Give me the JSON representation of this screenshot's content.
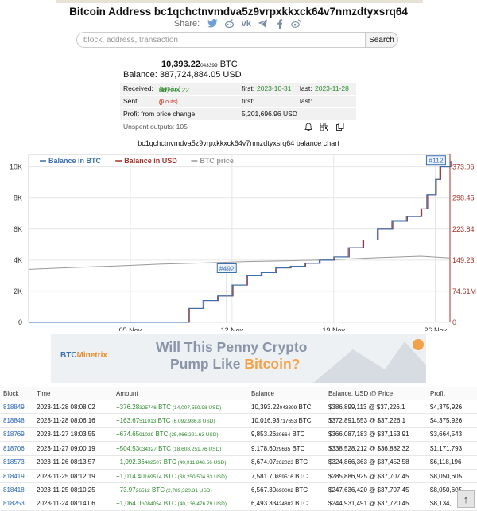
{
  "page": {
    "title": "Bitcoin Address bc1qchctnvmdva5z9vrpxkkxck64v7nmzdtyxsrq64",
    "share_label": "Share:",
    "share_icons": [
      "twitter-icon",
      "reddit-icon",
      "vk-icon",
      "telegram-icon",
      "facebook-icon",
      "weibo-icon"
    ]
  },
  "search": {
    "placeholder": "block, address, transaction",
    "button": "Search"
  },
  "summary": {
    "balance_btc": "10,393.22",
    "balance_btc_small": "043399",
    "btc_unit": "BTC",
    "balance_label": "Balance:",
    "balance_usd": "387,724,884.05 USD",
    "received_label": "Received:",
    "received_value": "10,393.22",
    "received_small": "04",
    "received_unit": "BTC",
    "received_ins": "(105 ins)",
    "first_label": "first:",
    "received_first": "2023-10-31",
    "last_label": "last:",
    "received_last": "2023-11-28",
    "sent_label": "Sent:",
    "sent_value": "0 BTC",
    "sent_outs": "(0 outs)",
    "profit_label": "Profit from price change:",
    "profit_value": "5,201,696.96 USD",
    "unspent_label": "Unspent outputs: 105"
  },
  "chart_data": {
    "type": "line",
    "title": "bc1qchctnvmdva5z9vrpxkkxck64v7nmzdtyxsrq64 balance chart",
    "legend": [
      {
        "name": "Balance in BTC",
        "color": "#3a6fb0"
      },
      {
        "name": "Balance in USD",
        "color": "#a0332c"
      },
      {
        "name": "BTC price",
        "color": "#999999"
      }
    ],
    "legend_position": "top-left",
    "x_ticks": [
      "05 Nov",
      "12 Nov",
      "19 Nov",
      "26 Nov"
    ],
    "y_left_ticks": [
      "0",
      "2K",
      "4K",
      "6K",
      "8K",
      "10K"
    ],
    "y_right_ticks": [
      "0",
      "74.61M",
      "149.23",
      "223.84",
      "298.45",
      "373.06"
    ],
    "ylim_left": [
      0,
      10800
    ],
    "x_range_days": [
      0,
      29
    ],
    "annotations": [
      "#492",
      "#112"
    ],
    "series": [
      {
        "name": "Balance in BTC",
        "x": [
          0,
          10,
          11,
          12,
          13,
          14,
          15,
          16,
          17,
          18,
          19,
          20,
          21,
          22,
          23,
          24,
          25,
          26,
          27,
          27.4,
          28,
          28.3,
          29
        ],
        "y": [
          0,
          0,
          900,
          1400,
          1700,
          2400,
          3000,
          3200,
          3500,
          3600,
          3800,
          4000,
          4200,
          4800,
          5300,
          6000,
          6500,
          6800,
          7300,
          8200,
          9200,
          10000,
          10393
        ]
      },
      {
        "name": "BTC price",
        "x": [
          0,
          3,
          6,
          9,
          12,
          15,
          18,
          21,
          24,
          27,
          29
        ],
        "y": [
          34200,
          34700,
          35100,
          35600,
          35900,
          36300,
          36500,
          36800,
          37300,
          37700,
          37226
        ]
      }
    ],
    "grid": true
  },
  "ad": {
    "brand": "BTC",
    "brand2": "Minetrix",
    "headline1": "Will This Penny Crypto",
    "headline2a": "Pump Like ",
    "headline2b": "Bitcoin?"
  },
  "table": {
    "headers": [
      "Block",
      "Time",
      "Amount",
      "Balance",
      "Balance, USD @ Price",
      "Profit"
    ],
    "rows": [
      {
        "block": "818849",
        "time": "2023-11-28 08:08:02",
        "amt": "+376.28",
        "amt_small": "325746",
        "amt_unit": " BTC",
        "amt_usd": " (14,007,559.98 USD)",
        "bal": "10,393.22",
        "bal_small": "043399",
        "bal_unit": " BTC",
        "usd": "$386,899,113 @ $37,226.1",
        "profit": "$4,375,926"
      },
      {
        "block": "818848",
        "time": "2023-11-28 08:06:16",
        "amt": "+163.67",
        "amt_small": "511013",
        "amt_unit": " BTC",
        "amt_usd": " (6,092,986.8 USD)",
        "bal": "10,016.93",
        "bal_small": "717653",
        "bal_unit": " BTC",
        "usd": "$372,891,553 @ $37,226.1",
        "profit": "$4,375,926"
      },
      {
        "block": "818769",
        "time": "2023-11-27 18:03:55",
        "amt": "+674.65",
        "amt_small": "91029",
        "amt_unit": " BTC",
        "amt_usd": " (25,066,221.63 USD)",
        "bal": "9,853.26",
        "bal_small": "20664",
        "bal_unit": " BTC",
        "usd": "$366,087,183 @ $37,153.91",
        "profit": "$3,664,543"
      },
      {
        "block": "818706",
        "time": "2023-11-27 09:00:19",
        "amt": "+504.53",
        "amt_small": "034327",
        "amt_unit": " BTC",
        "amt_usd": " (18,608,251.76 USD)",
        "bal": "9,178.60",
        "bal_small": "29635",
        "bal_unit": " BTC",
        "usd": "$338,528,212 @ $36,882.32",
        "profit": "$1,171,793"
      },
      {
        "block": "818573",
        "time": "2023-11-26 08:13:57",
        "amt": "+1,092.36",
        "amt_small": "402507",
        "amt_unit": " BTC",
        "amt_usd": " (40,911,848.56 USD)",
        "bal": "8,674.07",
        "bal_small": "262023",
        "bal_unit": " BTC",
        "usd": "$324,866,363 @ $37,452.58",
        "profit": "$6,118,196"
      },
      {
        "block": "818419",
        "time": "2023-11-25 08:12:19",
        "amt": "+1,014.40",
        "amt_small": "169514",
        "amt_unit": " BTC",
        "amt_usd": " (38,250,504.83 USD)",
        "bal": "7,581.70",
        "bal_small": "859516",
        "bal_unit": " BTC",
        "usd": "$285,886,925 @ $37,707.45",
        "profit": "$8,050,605"
      },
      {
        "block": "818418",
        "time": "2023-11-25 08:10:25",
        "amt": "+73.97",
        "amt_small": "26512",
        "amt_unit": " BTC",
        "amt_usd": " (2,789,320.31 USD)",
        "bal": "6,567.30",
        "bal_small": "690002",
        "bal_unit": " BTC",
        "usd": "$247,636,420 @ $37,707.45",
        "profit": "$8,050,605"
      },
      {
        "block": "818253",
        "time": "2023-11-24 08:14:06",
        "amt": "+1,064.05",
        "amt_small": "084054",
        "amt_unit": " BTC",
        "amt_usd": " (40,136,476.79 USD)",
        "bal": "6,493.33",
        "bal_small": "424882",
        "bal_unit": " BTC",
        "usd": "$244,931,491 @ $37,720.45",
        "profit": "$8,134,..."
      }
    ]
  },
  "scroll_top": "↑"
}
